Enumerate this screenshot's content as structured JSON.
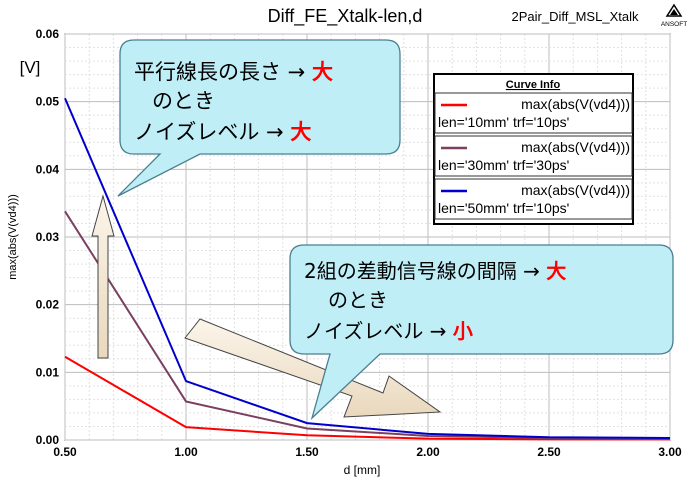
{
  "chart_data": {
    "type": "line",
    "title": "Diff_FE_Xtalk-len,d",
    "subtitle": "2Pair_Diff_MSL_Xtalk",
    "brand": "ANSOFT",
    "xlabel": "d [mm]",
    "ylabel": "max(abs(V(vd4)))",
    "unit_label": "[V]",
    "xlim": [
      0.5,
      3.0
    ],
    "ylim": [
      0.0,
      0.06
    ],
    "xticks": [
      "0.50",
      "1.00",
      "1.50",
      "2.00",
      "2.50",
      "3.00"
    ],
    "yticks": [
      "0.00",
      "0.01",
      "0.02",
      "0.03",
      "0.04",
      "0.05",
      "0.06"
    ],
    "grid": true,
    "legend": {
      "title": "Curve Info",
      "placement": "top-right"
    },
    "series": [
      {
        "name": "max(abs(V(vd4)))",
        "params": "len='10mm' trf='10ps'",
        "color": "#ff0000",
        "x": [
          0.5,
          1.0,
          1.5,
          2.0,
          2.5,
          3.0
        ],
        "y": [
          0.0123,
          0.0019,
          0.0007,
          0.0002,
          0.0001,
          0.0001
        ]
      },
      {
        "name": "max(abs(V(vd4)))",
        "params": "len='30mm' trf='30ps'",
        "color": "#7a4060",
        "x": [
          0.5,
          1.0,
          1.5,
          2.0,
          2.5,
          3.0
        ],
        "y": [
          0.0338,
          0.0057,
          0.0017,
          0.0006,
          0.0003,
          0.0002
        ]
      },
      {
        "name": "max(abs(V(vd4)))",
        "params": "len='50mm' trf='10ps'",
        "color": "#0000cc",
        "x": [
          0.5,
          1.0,
          1.5,
          2.0,
          2.5,
          3.0
        ],
        "y": [
          0.0505,
          0.0087,
          0.0025,
          0.0009,
          0.0004,
          0.0003
        ]
      }
    ]
  },
  "callouts": {
    "top": {
      "line1_prefix": "平行線長の長さ → ",
      "line1_em": "大",
      "line2": "のとき",
      "line3_prefix": "ノイズレベル → ",
      "line3_em": "大"
    },
    "bottom": {
      "line1_prefix": "2組の差動信号線の間隔 → ",
      "line1_em": "大",
      "line2": "のとき",
      "line3_prefix": "ノイズレベル → ",
      "line3_em": "小"
    }
  },
  "colors": {
    "callout_fill": "#bfeef7",
    "callout_stroke": "#4a7f8f",
    "emphasis": "#ff0000",
    "arrow_fill": "#f3e8d6"
  }
}
